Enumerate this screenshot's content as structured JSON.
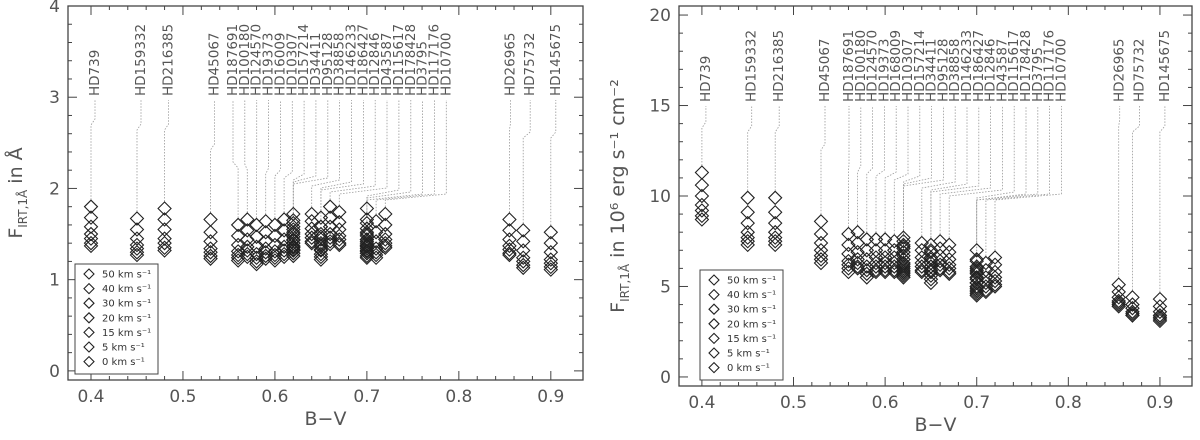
{
  "chart_data": [
    {
      "type": "scatter",
      "title": "",
      "xlabel": "B−V",
      "ylabel_main": "F",
      "ylabel_sub": "IRT,1Å",
      "ylabel_tail": " in Å",
      "xlim": [
        0.375,
        0.935
      ],
      "ylim": [
        -0.1,
        4.0
      ],
      "x_ticks": [
        0.4,
        0.5,
        0.6,
        0.7,
        0.8,
        0.9
      ],
      "x_tick_labels": [
        "0.4",
        "0.5",
        "0.6",
        "0.7",
        "0.8",
        "0.9"
      ],
      "y_ticks": [
        0,
        1,
        2,
        3,
        4
      ],
      "y_tick_labels": [
        "0",
        "1",
        "2",
        "3",
        "4"
      ],
      "legend": {
        "placement": "bottom-left",
        "entries": [
          "50 km s⁻¹",
          "40 km s⁻¹",
          "30 km s⁻¹",
          "20 km s⁻¹",
          "15 km s⁻¹",
          "5 km s⁻¹",
          "0 km s⁻¹"
        ]
      },
      "star_labels": [
        "HD739",
        "HD159332",
        "HD216385",
        "HD45067",
        "HD187691",
        "HD100180",
        "HD124570",
        "HD19373",
        "HD16009",
        "HD10307",
        "HD157214",
        "HD34411",
        "HD95128",
        "HD38858",
        "HD146233",
        "HD186427",
        "HD12846",
        "HD43587",
        "HD115617",
        "HD178428",
        "HD3795",
        "HD117176",
        "HD10700",
        "HD26965",
        "HD75732",
        "HD145675"
      ],
      "stars": [
        {
          "x": 0.4,
          "values": [
            1.8,
            1.68,
            1.58,
            1.5,
            1.45,
            1.4,
            1.37
          ]
        },
        {
          "x": 0.45,
          "values": [
            1.67,
            1.55,
            1.45,
            1.38,
            1.34,
            1.3,
            1.27
          ]
        },
        {
          "x": 0.48,
          "values": [
            1.78,
            1.66,
            1.55,
            1.45,
            1.4,
            1.35,
            1.32
          ]
        },
        {
          "x": 0.53,
          "values": [
            1.66,
            1.52,
            1.42,
            1.34,
            1.3,
            1.26,
            1.23
          ]
        },
        {
          "x": 0.56,
          "values": [
            1.6,
            1.48,
            1.38,
            1.31,
            1.27,
            1.24,
            1.21
          ]
        },
        {
          "x": 0.57,
          "values": [
            1.66,
            1.54,
            1.44,
            1.36,
            1.32,
            1.28,
            1.25
          ]
        },
        {
          "x": 0.58,
          "values": [
            1.6,
            1.47,
            1.36,
            1.28,
            1.24,
            1.2,
            1.17
          ]
        },
        {
          "x": 0.59,
          "values": [
            1.64,
            1.52,
            1.42,
            1.34,
            1.3,
            1.26,
            1.23
          ]
        },
        {
          "x": 0.6,
          "values": [
            1.6,
            1.48,
            1.38,
            1.31,
            1.27,
            1.24,
            1.21
          ]
        },
        {
          "x": 0.61,
          "values": [
            1.66,
            1.54,
            1.44,
            1.36,
            1.32,
            1.28,
            1.25
          ]
        },
        {
          "x": 0.62,
          "values": [
            1.72,
            1.62,
            1.52,
            1.44,
            1.4,
            1.35,
            1.32
          ]
        },
        {
          "x": 0.62,
          "values": [
            1.65,
            1.55,
            1.47,
            1.4,
            1.36,
            1.32,
            1.29
          ]
        },
        {
          "x": 0.62,
          "values": [
            1.58,
            1.5,
            1.43,
            1.37,
            1.33,
            1.29,
            1.26
          ]
        },
        {
          "x": 0.64,
          "values": [
            1.72,
            1.64,
            1.56,
            1.5,
            1.46,
            1.42,
            1.4
          ]
        },
        {
          "x": 0.65,
          "values": [
            1.58,
            1.47,
            1.38,
            1.32,
            1.28,
            1.25,
            1.22
          ]
        },
        {
          "x": 0.65,
          "values": [
            1.68,
            1.58,
            1.5,
            1.44,
            1.4,
            1.36,
            1.33
          ]
        },
        {
          "x": 0.66,
          "values": [
            1.8,
            1.68,
            1.58,
            1.5,
            1.46,
            1.42,
            1.39
          ]
        },
        {
          "x": 0.67,
          "values": [
            1.74,
            1.63,
            1.55,
            1.48,
            1.44,
            1.4,
            1.38
          ]
        },
        {
          "x": 0.7,
          "values": [
            1.78,
            1.66,
            1.56,
            1.48,
            1.44,
            1.4,
            1.37
          ]
        },
        {
          "x": 0.7,
          "values": [
            1.62,
            1.52,
            1.44,
            1.38,
            1.34,
            1.31,
            1.29
          ]
        },
        {
          "x": 0.7,
          "values": [
            1.5,
            1.42,
            1.36,
            1.32,
            1.29,
            1.26,
            1.24
          ]
        },
        {
          "x": 0.71,
          "values": [
            1.64,
            1.52,
            1.42,
            1.34,
            1.3,
            1.27,
            1.24
          ]
        },
        {
          "x": 0.72,
          "values": [
            1.72,
            1.6,
            1.5,
            1.44,
            1.4,
            1.37,
            1.35
          ]
        },
        {
          "x": 0.855,
          "values": [
            1.66,
            1.54,
            1.44,
            1.37,
            1.33,
            1.29,
            1.27
          ]
        },
        {
          "x": 0.87,
          "values": [
            1.54,
            1.42,
            1.32,
            1.24,
            1.2,
            1.16,
            1.13
          ]
        },
        {
          "x": 0.9,
          "values": [
            1.52,
            1.4,
            1.3,
            1.22,
            1.18,
            1.14,
            1.11
          ]
        }
      ]
    },
    {
      "type": "scatter",
      "title": "",
      "xlabel": "B−V",
      "ylabel_main": "F",
      "ylabel_sub": "IRT,1Å",
      "ylabel_tail": " in 10⁶ erg s⁻¹ cm⁻²",
      "xlim": [
        0.375,
        0.935
      ],
      "ylim": [
        -0.5,
        20.5
      ],
      "x_ticks": [
        0.4,
        0.5,
        0.6,
        0.7,
        0.8,
        0.9
      ],
      "x_tick_labels": [
        "0.4",
        "0.5",
        "0.6",
        "0.7",
        "0.8",
        "0.9"
      ],
      "y_ticks": [
        0,
        5,
        10,
        15,
        20
      ],
      "y_tick_labels": [
        "0",
        "5",
        "10",
        "15",
        "20"
      ],
      "legend": {
        "placement": "bottom-left",
        "entries": [
          "50 km s⁻¹",
          "40 km s⁻¹",
          "30 km s⁻¹",
          "20 km s⁻¹",
          "15 km s⁻¹",
          "5 km s⁻¹",
          "0 km s⁻¹"
        ]
      },
      "star_labels": [
        "HD739",
        "HD159332",
        "HD216385",
        "HD45067",
        "HD187691",
        "HD100180",
        "HD124570",
        "HD19373",
        "HD168009",
        "HD10307",
        "HD157214",
        "HD34411",
        "HD95128",
        "HD38858",
        "HD146233",
        "HD186427",
        "HD12846",
        "HD43587",
        "HD115617",
        "HD178428",
        "HD3795",
        "HD117176",
        "HD10700",
        "HD26965",
        "HD75732",
        "HD145675"
      ],
      "stars": [
        {
          "x": 0.4,
          "values": [
            11.3,
            10.6,
            10.0,
            9.5,
            9.2,
            8.9,
            8.7
          ]
        },
        {
          "x": 0.45,
          "values": [
            9.9,
            9.1,
            8.5,
            8.0,
            7.7,
            7.5,
            7.3
          ]
        },
        {
          "x": 0.48,
          "values": [
            9.9,
            9.1,
            8.5,
            8.0,
            7.7,
            7.5,
            7.3
          ]
        },
        {
          "x": 0.53,
          "values": [
            8.6,
            7.9,
            7.4,
            7.0,
            6.7,
            6.5,
            6.3
          ]
        },
        {
          "x": 0.56,
          "values": [
            7.9,
            7.3,
            6.8,
            6.4,
            6.2,
            6.0,
            5.8
          ]
        },
        {
          "x": 0.57,
          "values": [
            8.0,
            7.4,
            6.9,
            6.5,
            6.3,
            6.1,
            6.0
          ]
        },
        {
          "x": 0.58,
          "values": [
            7.6,
            7.0,
            6.5,
            6.1,
            5.9,
            5.7,
            5.5
          ]
        },
        {
          "x": 0.59,
          "values": [
            7.6,
            7.0,
            6.6,
            6.3,
            6.1,
            5.9,
            5.8
          ]
        },
        {
          "x": 0.6,
          "values": [
            7.6,
            7.0,
            6.6,
            6.3,
            6.1,
            5.9,
            5.8
          ]
        },
        {
          "x": 0.61,
          "values": [
            7.5,
            7.0,
            6.6,
            6.3,
            6.1,
            5.9,
            5.8
          ]
        },
        {
          "x": 0.62,
          "values": [
            7.7,
            7.3,
            6.9,
            6.5,
            6.3,
            6.0,
            5.8
          ]
        },
        {
          "x": 0.62,
          "values": [
            7.5,
            7.1,
            6.7,
            6.3,
            6.1,
            5.8,
            5.6
          ]
        },
        {
          "x": 0.62,
          "values": [
            7.2,
            6.9,
            6.5,
            6.2,
            5.9,
            5.7,
            5.5
          ]
        },
        {
          "x": 0.64,
          "values": [
            7.4,
            7.0,
            6.6,
            6.3,
            6.1,
            5.9,
            5.8
          ]
        },
        {
          "x": 0.65,
          "values": [
            7.0,
            6.5,
            6.1,
            5.8,
            5.6,
            5.4,
            5.2
          ]
        },
        {
          "x": 0.65,
          "values": [
            7.3,
            6.9,
            6.6,
            6.3,
            6.1,
            5.9,
            5.8
          ]
        },
        {
          "x": 0.66,
          "values": [
            7.5,
            7.1,
            6.7,
            6.4,
            6.2,
            6.0,
            5.9
          ]
        },
        {
          "x": 0.67,
          "values": [
            7.3,
            6.9,
            6.5,
            6.2,
            6.0,
            5.8,
            5.7
          ]
        },
        {
          "x": 0.7,
          "values": [
            7.0,
            6.5,
            6.1,
            5.8,
            5.5,
            5.2,
            5.0
          ]
        },
        {
          "x": 0.7,
          "values": [
            6.4,
            6.0,
            5.7,
            5.4,
            5.2,
            4.9,
            4.7
          ]
        },
        {
          "x": 0.7,
          "values": [
            5.9,
            5.5,
            5.2,
            5.0,
            4.8,
            4.6,
            4.5
          ]
        },
        {
          "x": 0.71,
          "values": [
            6.3,
            5.9,
            5.5,
            5.2,
            5.0,
            4.8,
            4.7
          ]
        },
        {
          "x": 0.72,
          "values": [
            6.6,
            6.2,
            5.8,
            5.5,
            5.3,
            5.1,
            5.0
          ]
        },
        {
          "x": 0.855,
          "values": [
            5.1,
            4.7,
            4.4,
            4.2,
            4.1,
            4.0,
            3.9
          ]
        },
        {
          "x": 0.87,
          "values": [
            4.4,
            4.0,
            3.8,
            3.6,
            3.5,
            3.4,
            3.4
          ]
        },
        {
          "x": 0.9,
          "values": [
            4.3,
            3.9,
            3.6,
            3.4,
            3.3,
            3.2,
            3.1
          ]
        }
      ]
    }
  ]
}
